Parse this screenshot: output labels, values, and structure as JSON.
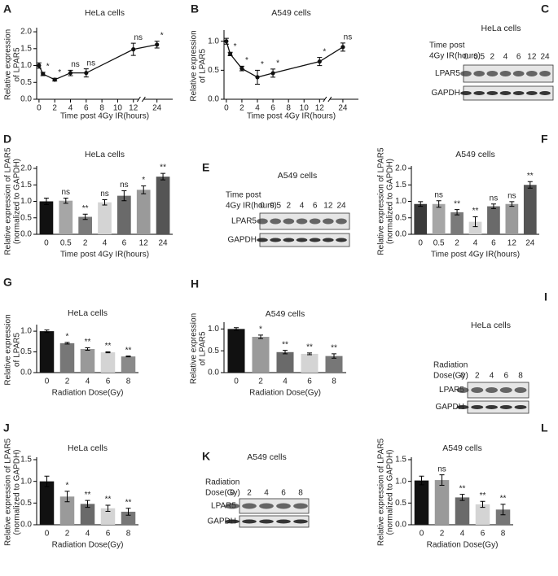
{
  "chart_data": [
    {
      "type": "line",
      "panel": "A",
      "title": "HeLa cells",
      "y_label": [
        "Relative expression",
        "of LPAR5"
      ],
      "x_label": "Time post 4Gy IR(hours)",
      "x": [
        0,
        0.5,
        2,
        4,
        6,
        12,
        24
      ],
      "values": [
        1.0,
        0.75,
        0.58,
        0.78,
        0.78,
        1.48,
        1.62
      ],
      "errors": [
        0.08,
        0.05,
        0.04,
        0.08,
        0.12,
        0.18,
        0.1
      ],
      "annotations": [
        null,
        "*",
        "*",
        "ns",
        "ns",
        "ns",
        "*"
      ],
      "color": "#111111",
      "xlim": [
        -0.3,
        26
      ],
      "x_break": [
        13,
        22
      ],
      "xticks": [
        0,
        2,
        4,
        6,
        8,
        10,
        12,
        24
      ],
      "ylim": [
        0,
        2.05
      ],
      "yticks": [
        {
          "value": 0,
          "label": "0.0"
        },
        0.5,
        {
          "value": 1,
          "label": "1.0"
        },
        1.5,
        {
          "value": 2,
          "label": "2.0"
        }
      ]
    },
    {
      "type": "line",
      "panel": "B",
      "title": "A549 cells",
      "y_label": [
        "Relative expression",
        "of LPAR5"
      ],
      "x_label": "Time post 4Gy IR(hours)",
      "x": [
        0,
        0.5,
        2,
        4,
        6,
        12,
        24
      ],
      "values": [
        1.0,
        0.78,
        0.53,
        0.38,
        0.45,
        0.65,
        0.9
      ],
      "errors": [
        0.05,
        0.03,
        0.04,
        0.12,
        0.07,
        0.07,
        0.07
      ],
      "annotations": [
        null,
        "*",
        "*",
        "*",
        "*",
        "*",
        "ns"
      ],
      "color": "#111111",
      "xlim": [
        -0.3,
        26
      ],
      "x_break": [
        13,
        22
      ],
      "xticks": [
        0,
        2,
        4,
        6,
        8,
        10,
        12,
        24
      ],
      "ylim": [
        0,
        1.15
      ],
      "yticks": [
        {
          "value": 0,
          "label": "0.0"
        },
        0.5,
        {
          "value": 1,
          "label": "1.0"
        }
      ]
    },
    {
      "type": "bar",
      "panel": "D",
      "title": "HeLa cells",
      "y_label": [
        "Relative expression of LPAR5",
        "(normalized to GAPDH)"
      ],
      "x_label": "Time post 4Gy IR(hours)",
      "categories": [
        "0",
        "0.5",
        "2",
        "4",
        "6",
        "12",
        "24"
      ],
      "values": [
        1.0,
        1.02,
        0.53,
        0.97,
        1.17,
        1.35,
        1.75
      ],
      "errors": [
        0.1,
        0.08,
        0.08,
        0.08,
        0.15,
        0.12,
        0.1
      ],
      "annotations": [
        null,
        "ns",
        "**",
        "ns",
        "ns",
        "*",
        "**"
      ],
      "colors": [
        "#111111",
        "#a6a6a6",
        "#7a7a7a",
        "#d4d4d4",
        "#6a6a6a",
        "#9a9a9a",
        "#555555"
      ],
      "ylim": [
        0,
        2.0
      ],
      "yticks": [
        {
          "value": 0,
          "label": "0.0"
        },
        0.5,
        {
          "value": 1,
          "label": "1.0"
        },
        1.5,
        {
          "value": 2,
          "label": "2.0"
        }
      ]
    },
    {
      "type": "bar",
      "panel": "F",
      "title": "A549 cells",
      "y_label": [
        "Relative  expression of LPAR5",
        "(normalized to GAPDH)"
      ],
      "x_label": "Time post 4Gy IR(hours)",
      "categories": [
        "0",
        "0.5",
        "2",
        "4",
        "6",
        "12",
        "24"
      ],
      "values": [
        0.92,
        0.92,
        0.67,
        0.38,
        0.85,
        0.92,
        1.5
      ],
      "errors": [
        0.07,
        0.1,
        0.08,
        0.15,
        0.07,
        0.07,
        0.1
      ],
      "annotations": [
        null,
        "ns",
        "**",
        "**",
        "ns",
        "ns",
        "**"
      ],
      "colors": [
        "#3a3a3a",
        "#a6a6a6",
        "#7a7a7a",
        "#d4d4d4",
        "#6a6a6a",
        "#9a9a9a",
        "#555555"
      ],
      "ylim": [
        0,
        2.0
      ],
      "yticks": [
        {
          "value": 0,
          "label": "0.0"
        },
        0.5,
        {
          "value": 1,
          "label": "1.0"
        },
        1.5,
        {
          "value": 2,
          "label": "2.0"
        }
      ]
    },
    {
      "type": "bar",
      "panel": "G",
      "title": "HeLa cells",
      "y_label": [
        "Relative expression",
        "of LPAR5"
      ],
      "x_label": "Radiation Dose(Gy)",
      "categories": [
        "0",
        "2",
        "4",
        "6",
        "8"
      ],
      "values": [
        1.0,
        0.71,
        0.57,
        0.49,
        0.39
      ],
      "errors": [
        0.03,
        0.02,
        0.03,
        0.01,
        0.01
      ],
      "annotations": [
        null,
        "*",
        "**",
        "**",
        "**"
      ],
      "colors": [
        "#111111",
        "#777777",
        "#999999",
        "#d4d4d4",
        "#8a8a8a"
      ],
      "ylim": [
        0,
        1.1
      ],
      "yticks": [
        {
          "value": 0,
          "label": "0.0"
        },
        0.5,
        {
          "value": 1,
          "label": "1.0"
        }
      ]
    },
    {
      "type": "bar",
      "panel": "H",
      "title": "A549 cells",
      "y_label": [
        "Relative expression",
        "of LPAR5"
      ],
      "x_label": "Radiation Dose(Gy)",
      "categories": [
        "0",
        "2",
        "4",
        "6",
        "8"
      ],
      "values": [
        1.0,
        0.82,
        0.47,
        0.43,
        0.38
      ],
      "errors": [
        0.03,
        0.04,
        0.04,
        0.02,
        0.05
      ],
      "annotations": [
        null,
        "*",
        "**",
        "**",
        "**"
      ],
      "colors": [
        "#111111",
        "#9a9a9a",
        "#6a6a6a",
        "#d4d4d4",
        "#777777"
      ],
      "ylim": [
        0,
        1.1
      ],
      "yticks": [
        {
          "value": 0,
          "label": "0.0"
        },
        0.5,
        {
          "value": 1,
          "label": "1.0"
        }
      ]
    },
    {
      "type": "bar",
      "panel": "J",
      "title": "HeLa cells",
      "y_label": [
        "Relative  expression of LPAR5",
        "(normalized to GAPDH)"
      ],
      "x_label": "Radiation Dose(Gy)",
      "categories": [
        "0",
        "2",
        "4",
        "6",
        "8"
      ],
      "values": [
        1.0,
        0.65,
        0.48,
        0.38,
        0.3
      ],
      "errors": [
        0.12,
        0.12,
        0.08,
        0.07,
        0.08
      ],
      "annotations": [
        null,
        "*",
        "**",
        "**",
        "**"
      ],
      "colors": [
        "#111111",
        "#9a9a9a",
        "#6a6a6a",
        "#d4d4d4",
        "#777777"
      ],
      "ylim": [
        0,
        1.5
      ],
      "yticks": [
        {
          "value": 0,
          "label": "0.0"
        },
        0.5,
        {
          "value": 1,
          "label": "1.0"
        },
        1.5
      ]
    },
    {
      "type": "bar",
      "panel": "L",
      "title": "A549 cells",
      "y_label": [
        "Relative expression of LPAR5",
        "(normalized to GAPDH)"
      ],
      "x_label": "Radiation Dose(Gy)",
      "categories": [
        "0",
        "2",
        "4",
        "6",
        "8"
      ],
      "values": [
        1.02,
        1.03,
        0.63,
        0.47,
        0.35
      ],
      "errors": [
        0.1,
        0.12,
        0.07,
        0.07,
        0.12
      ],
      "annotations": [
        null,
        "ns",
        "**",
        "**",
        "**"
      ],
      "colors": [
        "#111111",
        "#9a9a9a",
        "#6a6a6a",
        "#d4d4d4",
        "#777777"
      ],
      "ylim": [
        0,
        1.5
      ],
      "yticks": [
        {
          "value": 0,
          "label": "0.0"
        },
        0.5,
        {
          "value": 1,
          "label": "1.0"
        },
        1.5
      ]
    }
  ],
  "blots": [
    {
      "panel": "C",
      "title": "HeLa cells",
      "header": [
        "Time post",
        "4Gy IR(hours)"
      ],
      "lanes": [
        "0",
        "0.5",
        "2",
        "4",
        "6",
        "12",
        "24"
      ],
      "rows": [
        "LPAR5",
        "GAPDH"
      ]
    },
    {
      "panel": "E",
      "title": "A549 cells",
      "header": [
        "Time post",
        "4Gy IR(hours)"
      ],
      "lanes": [
        "0",
        "0.5",
        "2",
        "4",
        "6",
        "12",
        "24"
      ],
      "rows": [
        "LPAR5",
        "GAPDH"
      ]
    },
    {
      "panel": "I",
      "title": "HeLa cells",
      "header": [
        "Radiation",
        "Dose(Gy)"
      ],
      "lanes": [
        "0",
        "2",
        "4",
        "6",
        "8"
      ],
      "rows": [
        "LPAR5",
        "GAPDH"
      ]
    },
    {
      "panel": "K",
      "title": "A549 cells",
      "header": [
        "Radiation",
        "Dose(Gy)"
      ],
      "lanes": [
        "0",
        "2",
        "4",
        "6",
        "8"
      ],
      "rows": [
        "LPAR5",
        "GAPDH"
      ]
    }
  ]
}
